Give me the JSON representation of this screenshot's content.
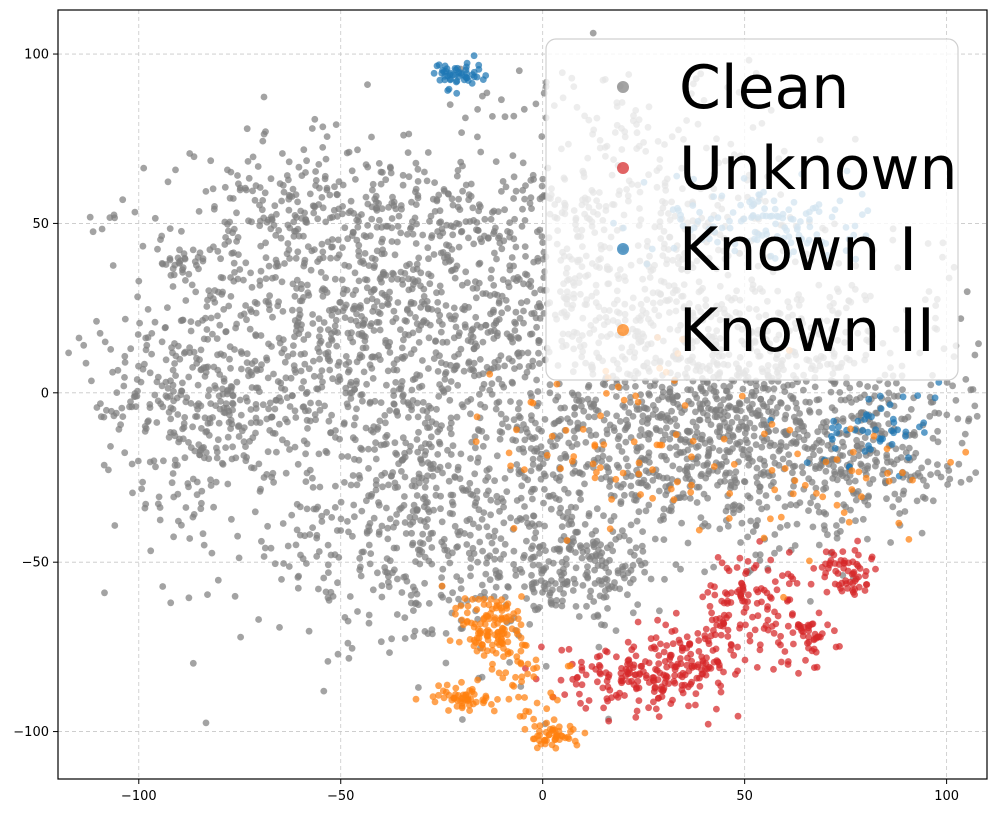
{
  "chart_data": {
    "type": "scatter",
    "title": "",
    "xlabel": "",
    "ylabel": "",
    "xlim": [
      -120,
      110
    ],
    "ylim": [
      -114,
      113
    ],
    "x_ticks": [
      -100,
      -50,
      0,
      50,
      100
    ],
    "y_ticks": [
      -100,
      -50,
      0,
      50,
      100
    ],
    "x_tick_labels": [
      "−100",
      "−50",
      "0",
      "50",
      "100"
    ],
    "y_tick_labels": [
      "−100",
      "−50",
      "0",
      "50",
      "100"
    ],
    "grid": true,
    "legend_position": "top-right",
    "series": [
      {
        "name": "Clean",
        "color": "#7f7f7f",
        "clusters": [
          {
            "cx": -40,
            "cy": 20,
            "sx": 28,
            "sy": 28,
            "n": 1200
          },
          {
            "cx": -85,
            "cy": -5,
            "sx": 12,
            "sy": 14,
            "n": 250
          },
          {
            "cx": 20,
            "cy": 40,
            "sx": 20,
            "sy": 30,
            "n": 600
          },
          {
            "cx": 40,
            "cy": -15,
            "sx": 30,
            "sy": 15,
            "n": 800
          },
          {
            "cx": -25,
            "cy": -45,
            "sx": 25,
            "sy": 15,
            "n": 500
          },
          {
            "cx": 60,
            "cy": 10,
            "sx": 25,
            "sy": 20,
            "n": 400
          },
          {
            "cx": 80,
            "cy": -20,
            "sx": 10,
            "sy": 10,
            "n": 150
          },
          {
            "cx": -60,
            "cy": 50,
            "sx": 15,
            "sy": 10,
            "n": 150
          },
          {
            "cx": -90,
            "cy": 38,
            "sx": 3,
            "sy": 3,
            "n": 25
          },
          {
            "cx": 10,
            "cy": -55,
            "sx": 10,
            "sy": 6,
            "n": 120
          }
        ]
      },
      {
        "name": "Unknown",
        "color": "#d62728",
        "clusters": [
          {
            "cx": 25,
            "cy": -83,
            "sx": 10,
            "sy": 5,
            "n": 180
          },
          {
            "cx": 52,
            "cy": -62,
            "sx": 8,
            "sy": 7,
            "n": 120
          },
          {
            "cx": 75,
            "cy": -53,
            "sx": 3,
            "sy": 4,
            "n": 60
          },
          {
            "cx": 65,
            "cy": -72,
            "sx": 4,
            "sy": 4,
            "n": 40
          },
          {
            "cx": 40,
            "cy": -78,
            "sx": 6,
            "sy": 5,
            "n": 60
          }
        ]
      },
      {
        "name": "Known I",
        "color": "#1f77b4",
        "clusters": [
          {
            "cx": -21,
            "cy": 94,
            "sx": 3,
            "sy": 2,
            "n": 50
          },
          {
            "cx": 55,
            "cy": 50,
            "sx": 12,
            "sy": 6,
            "n": 120
          },
          {
            "cx": 82,
            "cy": -10,
            "sx": 8,
            "sy": 6,
            "n": 50
          }
        ]
      },
      {
        "name": "Known II",
        "color": "#ff7f0e",
        "clusters": [
          {
            "cx": -12,
            "cy": -70,
            "sx": 4,
            "sy": 6,
            "n": 120
          },
          {
            "cx": -20,
            "cy": -90,
            "sx": 4,
            "sy": 2,
            "n": 50
          },
          {
            "cx": 3,
            "cy": -101,
            "sx": 3,
            "sy": 2,
            "n": 45
          },
          {
            "cx": 20,
            "cy": -15,
            "sx": 15,
            "sy": 15,
            "n": 70
          },
          {
            "cx": 70,
            "cy": -25,
            "sx": 15,
            "sy": 10,
            "n": 40
          },
          {
            "cx": -5,
            "cy": -85,
            "sx": 4,
            "sy": 6,
            "n": 40
          }
        ]
      }
    ]
  }
}
